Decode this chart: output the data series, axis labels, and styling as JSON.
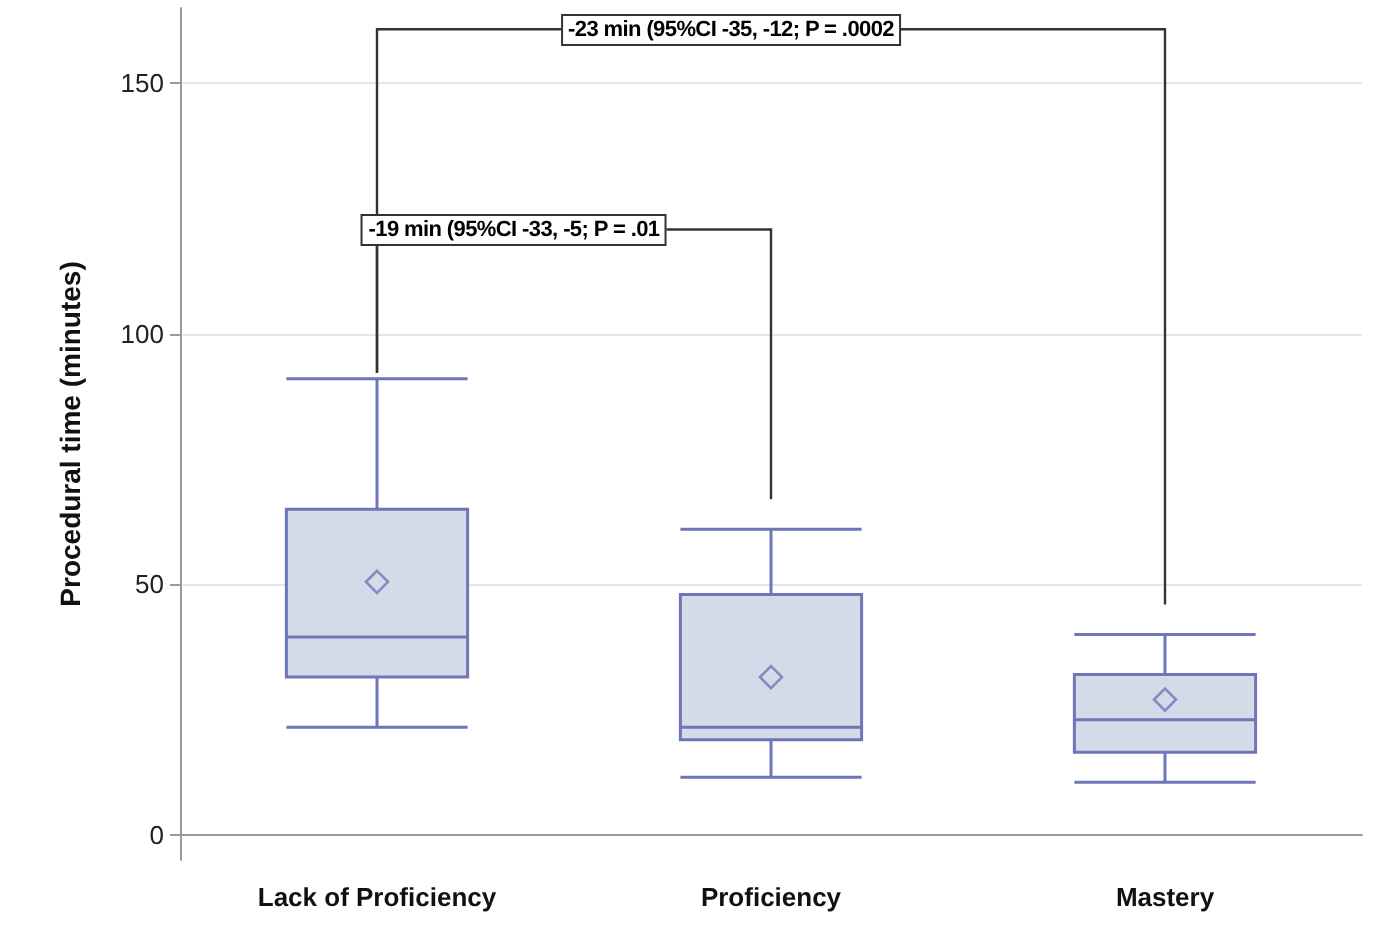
{
  "chart_data": {
    "type": "box",
    "ylabel": "Procedural time (minutes)",
    "categories": [
      "Lack of Proficiency",
      "Proficiency",
      "Mastery"
    ],
    "boxes": [
      {
        "low": 21.5,
        "q1": 31.5,
        "median": 39.5,
        "q3": 65,
        "high": 91,
        "mean": 50.5
      },
      {
        "low": 11.5,
        "q1": 19,
        "median": 21.5,
        "q3": 48,
        "high": 61,
        "mean": 31.5
      },
      {
        "low": 10.5,
        "q1": 16.5,
        "median": 23,
        "q3": 32,
        "high": 40,
        "mean": 27
      }
    ],
    "color": "#d5dae8",
    "marker": "diamond",
    "ylim": [
      -5,
      165
    ],
    "yticks": [
      0,
      50,
      100,
      150
    ],
    "grid": "y",
    "annotations": [
      "-23 min (95%CI -35, -12; P = .0002",
      "-19 min (95%CI -33, -5; P = .01"
    ]
  }
}
